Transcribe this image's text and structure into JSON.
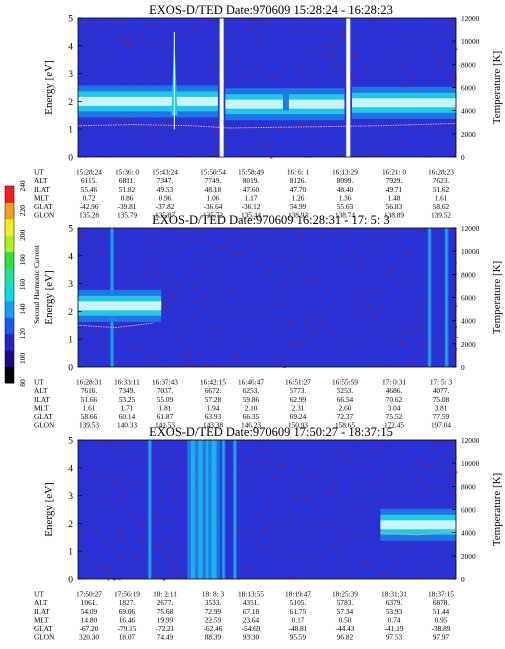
{
  "colors": {
    "background": "#2a32d6",
    "band_core": "#c8f4ff",
    "band_mid": "#22c8e8",
    "band_outer": "#1e7ce8",
    "noise": "#8a1a4a",
    "temperature_line": "#e8b0a0",
    "gap": "#ffffff",
    "colorbar": [
      "#000000",
      "#1a0a8a",
      "#2424c8",
      "#1a5af0",
      "#1a9cf0",
      "#10d8e8",
      "#20e0a0",
      "#30e040",
      "#a8f020",
      "#f0f020",
      "#f0a020",
      "#f02020"
    ]
  },
  "colorbar": {
    "label": "Second Harmonic Current",
    "ticks": [
      "80",
      "100",
      "120",
      "140",
      "160",
      "180",
      "200",
      "220",
      "240"
    ]
  },
  "row_labels": [
    "UT",
    "ALT",
    "ILAT",
    "MLT",
    "GLAT",
    "GLON"
  ],
  "chart_data": [
    {
      "type": "heatmap",
      "title": "EXOS-D/TED   Date:970609  15:28:24 - 16:28:23",
      "ylabel": "Energy [eV]",
      "y2label": "Temperature [K]",
      "ylim": [
        0,
        5
      ],
      "y2lim": [
        0,
        12000
      ],
      "yticks": [
        "0",
        "1",
        "2",
        "3",
        "4",
        "5"
      ],
      "y2ticks": [
        "0",
        "2000",
        "4000",
        "6000",
        "8000",
        "10000",
        "12000"
      ],
      "data_gaps": [
        0.38,
        0.715
      ],
      "band": {
        "segments": [
          [
            0.0,
            0.37,
            2.0
          ],
          [
            0.39,
            0.705,
            1.9
          ],
          [
            0.725,
            1.0,
            1.95
          ]
        ],
        "spike": [
          0.255,
          4.5
        ],
        "blip": [
          0.55,
          2.0
        ]
      },
      "temperature_line": [
        [
          0.0,
          2700
        ],
        [
          0.15,
          2800
        ],
        [
          0.3,
          2700
        ],
        [
          0.4,
          2500
        ],
        [
          0.6,
          2600
        ],
        [
          0.8,
          2700
        ],
        [
          1.0,
          2900
        ]
      ],
      "table": [
        [
          "15:28:24",
          "15:36: 0",
          "15:43:24",
          "15:50:54",
          "15:58:49",
          "16: 6: 1",
          "16:13:29",
          "16:21: 0",
          "16:28:23"
        ],
        [
          "6115.",
          "6811.",
          "7347.",
          "7749.",
          "8019.",
          "8126.",
          "8099.",
          "7929.",
          "7623."
        ],
        [
          "55.46",
          "51.82",
          "49.53",
          "48.18",
          "47.60",
          "47.70",
          "48.40",
          "49.71",
          "51.62"
        ],
        [
          "0.72",
          "0.86",
          "0.96",
          "1.06",
          "1.17",
          "1.26",
          "1.36",
          "1.48",
          "1.61"
        ],
        [
          "-42.96",
          "-39.81",
          "-37.82",
          "-36.64",
          "-36.12",
          "54.99",
          "55.63",
          "56.83",
          "58.62"
        ],
        [
          "135.28",
          "135.79",
          "135.87",
          "135.72",
          "135.44",
          "138.92",
          "138.74",
          "138.89",
          "139.52"
        ]
      ]
    },
    {
      "type": "heatmap",
      "title": "EXOS-D/TED   Date:970609  16:28:31 - 17: 5: 3",
      "ylabel": "Energy [eV]",
      "y2label": "Temperature [K]",
      "ylim": [
        0,
        5
      ],
      "y2lim": [
        0,
        12000
      ],
      "yticks": [
        "0",
        "1",
        "2",
        "3",
        "4",
        "5"
      ],
      "y2ticks": [
        "0",
        "2000",
        "4000",
        "6000",
        "8000",
        "10000",
        "12000"
      ],
      "data_gaps": [],
      "band": {
        "segments": [
          [
            0.0,
            0.22,
            2.2
          ]
        ],
        "spike": null,
        "blip": null
      },
      "vertical_streaks": [
        0.09,
        0.93,
        0.975
      ],
      "temperature_line": [
        [
          0.0,
          3600
        ],
        [
          0.1,
          3400
        ],
        [
          0.2,
          3800
        ]
      ],
      "table": [
        [
          "16:28:31",
          "16:33:11",
          "16:37:43",
          "16:42:15",
          "16:46:47",
          "16:51:27",
          "16:55:59",
          "17: 0:31",
          "17: 5: 3"
        ],
        [
          "7616.",
          "7349.",
          "7037.",
          "6672.",
          "6253.",
          "5773.",
          "5253.",
          "4686.",
          "4077."
        ],
        [
          "51.66",
          "53.25",
          "55.09",
          "57.28",
          "59.86",
          "62.99",
          "66.54",
          "70.62",
          "75.08"
        ],
        [
          "1.61",
          "1.71",
          "1.81",
          "1.94",
          "2.10",
          "2.31",
          "2.60",
          "3.04",
          "3.81"
        ],
        [
          "58.66",
          "60.14",
          "61.87",
          "63.93",
          "66.35",
          "69.24",
          "72.37",
          "75.52",
          "77.59"
        ],
        [
          "139.53",
          "140.33",
          "141.53",
          "143.38",
          "146.23",
          "150.93",
          "158.65",
          "172.45",
          "197.04"
        ]
      ]
    },
    {
      "type": "heatmap",
      "title": "EXOS-D/TED   Date:970609  17:50:27 - 18:37:15",
      "ylabel": "Energy [eV]",
      "y2label": "Temperature [K]",
      "ylim": [
        0,
        5
      ],
      "y2lim": [
        0,
        12000
      ],
      "yticks": [
        "0",
        "1",
        "2",
        "3",
        "4",
        "5"
      ],
      "y2ticks": [
        "0",
        "2000",
        "4000",
        "6000",
        "8000",
        "10000",
        "12000"
      ],
      "data_gaps": [],
      "band": {
        "segments": [
          [
            0.8,
            1.0,
            1.95
          ]
        ],
        "spike": null,
        "blip": null
      },
      "vertical_streaks": [
        0.19,
        0.305,
        0.325,
        0.345,
        0.36,
        0.385,
        0.415
      ],
      "temperature_line": [
        [
          0.8,
          4000
        ],
        [
          0.9,
          3800
        ],
        [
          1.0,
          4200
        ]
      ],
      "table": [
        [
          "17:50:27",
          "17:56:19",
          "18: 2:11",
          "18: 8: 3",
          "18:13:55",
          "18:19:47",
          "18:25:39",
          "18:31:31",
          "18:37:15"
        ],
        [
          "1061.",
          "1827.",
          "2677.",
          "3533.",
          "4351.",
          "5105.",
          "5783.",
          "6379.",
          "6878."
        ],
        [
          "54.09",
          "69.06",
          "75.68",
          "72.99",
          "67.18",
          "61.75",
          "57.34",
          "53.93",
          "51.44"
        ],
        [
          "14.80",
          "16.46",
          "19.99",
          "22.59",
          "23.64",
          "0.17",
          "0.50",
          "0.74",
          "0.95"
        ],
        [
          "-67.20",
          "-79.15",
          "-72.21",
          "-62.46",
          "-54.69",
          "-48.81",
          "-44.43",
          "-41.19",
          "-38.89"
        ],
        [
          "320.30",
          "18.07",
          "74.49",
          "88.39",
          "93.30",
          "95.59",
          "96.82",
          "97.53",
          "97.97"
        ]
      ]
    }
  ]
}
